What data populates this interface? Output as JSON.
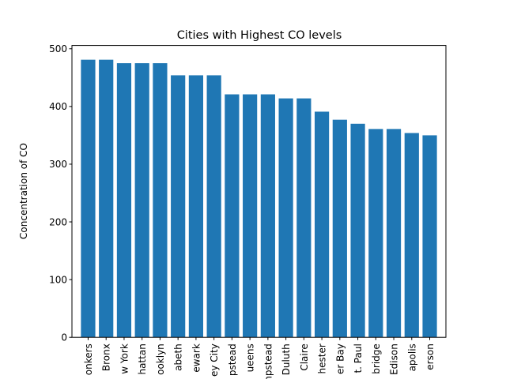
{
  "chart_data": {
    "type": "bar",
    "title": "Cities with Highest CO levels",
    "xlabel": "",
    "ylabel": "Concentration of CO",
    "ylim": [
      0,
      500
    ],
    "yticks": [
      0,
      100,
      200,
      300,
      400,
      500
    ],
    "grid": false,
    "bar_color": "#1f77b4",
    "categories": [
      "onkers",
      "Bronx",
      "w York",
      "hattan",
      "ooklyn",
      "abeth",
      "ewark",
      "ey City",
      "pstead",
      "ueens",
      "npstead",
      "Duluth",
      "Claire",
      "hester",
      "er Bay",
      "t. Paul",
      "bridge",
      "Edison",
      "apolis",
      "erson"
    ],
    "values": [
      481,
      481,
      475,
      475,
      475,
      454,
      454,
      454,
      421,
      421,
      421,
      414,
      414,
      391,
      377,
      370,
      361,
      361,
      354,
      350
    ]
  }
}
